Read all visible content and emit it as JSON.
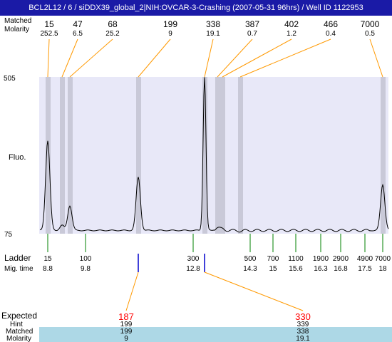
{
  "window": {
    "title": "BCL2L12 / 6 / siDDX39_global_2|NIH:OVCAR-3-Crashing (2007-05-31 96hrs) / Well ID 1122953"
  },
  "colors": {
    "title_bg": "#1a1aa6",
    "plot_bg": "#e8e8f8",
    "peak_band": "#c9c9d8",
    "trace": "#000000",
    "leader_orange": "#ff9900",
    "ladder_green": "#008000",
    "marker_blue": "#0000cc",
    "expected_red": "#ff0000",
    "matched_row_bg": "#add8e6"
  },
  "top_header": {
    "row1_label": "Matched",
    "row2_label": "Molarity",
    "sizes": [
      "15",
      "47",
      "68",
      "199",
      "338",
      "387",
      "402",
      "466",
      "7000"
    ],
    "molarities": [
      "252.5",
      "6.5",
      "25.2",
      "9",
      "19.1",
      "0.7",
      "1.2",
      "0.4",
      "0.5"
    ]
  },
  "axis": {
    "ylabel": "Fluo.",
    "ymin": 75,
    "ymax": 505,
    "ymin_label": "75",
    "ymax_label": "505"
  },
  "ladder": {
    "label": "Ladder",
    "mig_label": "Mig. time",
    "sizes": [
      "15",
      "100",
      "300",
      "500",
      "700",
      "1100",
      "1900",
      "2900",
      "4900",
      "7000"
    ],
    "mig_times": [
      "8.8",
      "9.8",
      "12.8",
      "14.3",
      "15",
      "15.6",
      "16.3",
      "16.8",
      "17.5",
      "18"
    ]
  },
  "bottom_table": {
    "expected_label": "Expected",
    "hint_label": "Hint",
    "matched_label": "Matched",
    "molarity_label": "Molarity",
    "columns": [
      {
        "expected": "187",
        "hint": "199",
        "matched": "199",
        "molarity": "9"
      },
      {
        "expected": "330",
        "hint": "339",
        "matched": "338",
        "molarity": "19.1"
      }
    ]
  },
  "chart_data": {
    "type": "line",
    "title": "",
    "xlabel": "Mig. time",
    "ylabel": "Fluo.",
    "ylim": [
      75,
      505
    ],
    "x_reference": {
      "sizes": [
        15,
        100,
        300,
        500,
        700,
        1100,
        1900,
        2900,
        4900,
        7000
      ],
      "mig_times": [
        8.8,
        9.8,
        12.8,
        14.3,
        15,
        15.6,
        16.3,
        16.8,
        17.5,
        18
      ]
    },
    "peaks": [
      {
        "size": 15,
        "molarity": 252.5,
        "height": 330
      },
      {
        "size": 47,
        "molarity": 6.5,
        "height": 98
      },
      {
        "size": 68,
        "molarity": 25.2,
        "height": 152
      },
      {
        "size": 199,
        "molarity": 9,
        "height": 230
      },
      {
        "size": 338,
        "molarity": 19.1,
        "height": 505
      },
      {
        "size": 387,
        "molarity": 0.7,
        "height": 92
      },
      {
        "size": 402,
        "molarity": 1.2,
        "height": 88
      },
      {
        "size": 466,
        "molarity": 0.4,
        "height": 82
      },
      {
        "size": 7000,
        "molarity": 0.5,
        "height": 210
      }
    ]
  }
}
